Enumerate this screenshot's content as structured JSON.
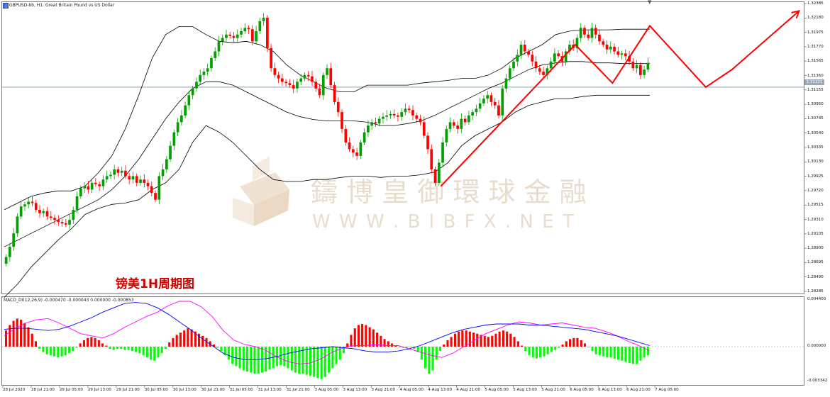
{
  "window": {
    "symbol_title": "GBPUSD-bb, H1:  Great Britain Pound vs US Dollar",
    "macd_title": "MACD_DI(12,26,9) -0.000470 -0.000043 0.000000 -0.000853",
    "scroll_marker": "▼"
  },
  "price_axis": {
    "ticks": [
      "1.32385",
      "1.32180",
      "1.31975",
      "1.31770",
      "1.31565",
      "1.31360",
      "1.31155",
      "1.30950",
      "1.30745",
      "1.30540",
      "1.30335",
      "1.30130",
      "1.29925",
      "1.29720",
      "1.29515",
      "1.29310",
      "1.29105",
      "1.28900",
      "1.28695",
      "1.28490",
      "1.28285"
    ],
    "current_price": "1.31221"
  },
  "macd_axis": {
    "ticks": [
      "0.004400",
      "0.000000",
      "-0.003342"
    ]
  },
  "time_axis": {
    "ticks": [
      "28 Jul 2020",
      "28 Jul 21:00",
      "29 Jul 05:00",
      "29 Jul 13:00",
      "29 Jul 21:00",
      "30 Jul 05:00",
      "30 Jul 13:00",
      "30 Jul 21:00",
      "31 Jul 05:00",
      "31 Jul 13:00",
      "31 Jul 21:00",
      "3 Aug 05:00",
      "3 Aug 13:00",
      "3 Aug 21:00",
      "4 Aug 05:00",
      "4 Aug 13:00",
      "4 Aug 21:00",
      "5 Aug 05:00",
      "5 Aug 13:00",
      "5 Aug 21:00",
      "6 Aug 05:00",
      "6 Aug 13:00",
      "6 Aug 21:00",
      "7 Aug 05:00"
    ]
  },
  "watermark": {
    "company": "鑄 博 皇 御 環 球 金 融",
    "url": "W W W . B I B F X . N E T"
  },
  "annotation": {
    "label": "镑美1H周期图"
  },
  "colors": {
    "bull": "#00a000",
    "bear": "#ff0000",
    "band": "#000000",
    "macd_main": "#ff00ff",
    "macd_signal": "#0000ff",
    "hist_pos": "#ff0000",
    "hist_neg": "#00ff00",
    "pattern": "#ff0000",
    "price_line": "#8ea3b2"
  },
  "chart_data": {
    "type": "candlestick",
    "symbol": "GBPUSD",
    "timeframe": "H1",
    "ylim": [
      1.282,
      1.3245
    ],
    "macd_ylim": [
      -0.003342,
      0.0044
    ],
    "series": [
      {
        "name": "close",
        "values": [
          1.287,
          1.2885,
          1.2905,
          1.293,
          1.2945,
          1.2948,
          1.2952,
          1.295,
          1.294,
          1.2935,
          1.2938,
          1.293,
          1.2928,
          1.2925,
          1.2922,
          1.292,
          1.2918,
          1.2925,
          1.294,
          1.296,
          1.2972,
          1.2975,
          1.297,
          1.298,
          1.2978,
          1.2975,
          1.2985,
          1.299,
          1.2992,
          1.3,
          1.2995,
          1.2998,
          1.299,
          1.2985,
          1.299,
          1.298,
          1.2985,
          1.298,
          1.2975,
          1.2965,
          1.2955,
          1.299,
          1.3,
          1.3015,
          1.3035,
          1.3055,
          1.307,
          1.308,
          1.3095,
          1.311,
          1.312,
          1.313,
          1.314,
          1.3145,
          1.315,
          1.3165,
          1.3175,
          1.319,
          1.3195,
          1.32,
          1.3198,
          1.3195,
          1.32,
          1.3205,
          1.321,
          1.3208,
          1.319,
          1.3205,
          1.322,
          1.3225,
          1.318,
          1.315,
          1.314,
          1.3135,
          1.313,
          1.3128,
          1.3125,
          1.312,
          1.313,
          1.3135,
          1.314,
          1.3138,
          1.313,
          1.312,
          1.311,
          1.314,
          1.315,
          1.3125,
          1.31,
          1.3085,
          1.306,
          1.304,
          1.303,
          1.3025,
          1.302,
          1.304,
          1.3055,
          1.3065,
          1.307,
          1.3068,
          1.3075,
          1.3078,
          1.308,
          1.3082,
          1.308,
          1.3078,
          1.3085,
          1.309,
          1.3088,
          1.308,
          1.3075,
          1.307,
          1.305,
          1.303,
          1.3,
          1.298,
          1.301,
          1.304,
          1.306,
          1.307,
          1.3065,
          1.306,
          1.3075,
          1.307,
          1.308,
          1.3085,
          1.309,
          1.3098,
          1.3105,
          1.311,
          1.31,
          1.3095,
          1.308,
          1.312,
          1.3135,
          1.315,
          1.316,
          1.317,
          1.3185,
          1.3175,
          1.317,
          1.316,
          1.315,
          1.3145,
          1.314,
          1.315,
          1.316,
          1.3172,
          1.3168,
          1.316,
          1.3175,
          1.3185,
          1.318,
          1.3195,
          1.321,
          1.32,
          1.3195,
          1.321,
          1.32,
          1.319,
          1.3185,
          1.3178,
          1.3182,
          1.3175,
          1.317,
          1.3172,
          1.3168,
          1.316,
          1.315,
          1.3155,
          1.314,
          1.3148,
          1.3158
        ]
      },
      {
        "name": "upper_band",
        "values": [
          1.294,
          1.295,
          1.296,
          1.2965,
          1.2968,
          1.2968,
          1.2975,
          1.2995,
          1.302,
          1.306,
          1.311,
          1.3165,
          1.32,
          1.3212,
          1.3212,
          1.32,
          1.319,
          1.3188,
          1.319,
          1.3185,
          1.3175,
          1.3155,
          1.314,
          1.313,
          1.312,
          1.3115,
          1.3115,
          1.3125,
          1.3125,
          1.3125,
          1.3125,
          1.3128,
          1.313,
          1.3132,
          1.3135,
          1.3135,
          1.314,
          1.315,
          1.3165,
          1.3175,
          1.3185,
          1.32,
          1.3205,
          1.3207,
          1.3207,
          1.3207,
          1.3208,
          1.3208,
          1.3208
        ]
      },
      {
        "name": "middle_band",
        "values": [
          1.2885,
          1.2895,
          1.2905,
          1.2915,
          1.2925,
          1.2935,
          1.2945,
          1.2955,
          1.297,
          1.299,
          1.3015,
          1.3045,
          1.3075,
          1.31,
          1.312,
          1.313,
          1.313,
          1.3125,
          1.3115,
          1.3105,
          1.3095,
          1.3085,
          1.3078,
          1.3074,
          1.3072,
          1.3072,
          1.3072,
          1.307,
          1.3065,
          1.3065,
          1.3068,
          1.3072,
          1.308,
          1.309,
          1.31,
          1.311,
          1.312,
          1.3128,
          1.3138,
          1.3148,
          1.3155,
          1.3158,
          1.316,
          1.316,
          1.3158,
          1.3158,
          1.3157,
          1.3157,
          1.3157
        ]
      },
      {
        "name": "lower_band",
        "values": [
          1.281,
          1.283,
          1.2855,
          1.2875,
          1.2895,
          1.2912,
          1.2933,
          1.2942,
          1.2948,
          1.295,
          1.2955,
          1.297,
          1.298,
          1.3,
          1.304,
          1.3065,
          1.3055,
          1.304,
          1.302,
          1.3,
          1.2985,
          1.2982,
          1.2982,
          1.2985,
          1.2985,
          1.2988,
          1.299,
          1.299,
          1.2988,
          1.299,
          1.299,
          1.2992,
          1.2996,
          1.301,
          1.3035,
          1.305,
          1.306,
          1.307,
          1.3085,
          1.3095,
          1.31,
          1.3105,
          1.3105,
          1.3108,
          1.311,
          1.311,
          1.311,
          1.311,
          1.311
        ]
      }
    ],
    "macd": {
      "histogram": [
        0.0015,
        0.002,
        0.0024,
        0.0026,
        0.0025,
        0.0022,
        0.0018,
        0.0012,
        0.0005,
        -0.0002,
        -0.0005,
        -0.0007,
        -0.0008,
        -0.0009,
        -0.001,
        -0.0009,
        -0.0008,
        -0.0006,
        -0.0004,
        -0.0001,
        0.0003,
        0.0006,
        0.0008,
        0.0009,
        0.0008,
        0.0006,
        0.0003,
        0.0001,
        -0.0002,
        -0.0003,
        -0.0002,
        -0.0002,
        -0.0003,
        -0.0003,
        -0.0004,
        -0.0005,
        -0.0006,
        -0.0008,
        -0.001,
        -0.0012,
        -0.0013,
        -0.001,
        -0.0006,
        -0.0002,
        0.0004,
        0.0008,
        0.0011,
        0.0013,
        0.0015,
        0.0017,
        0.0016,
        0.0014,
        0.0012,
        0.001,
        0.0008,
        0.0005,
        0.0002,
        -0.0001,
        -0.0004,
        -0.0008,
        -0.0012,
        -0.0016,
        -0.0018,
        -0.002,
        -0.0022,
        -0.0023,
        -0.0024,
        -0.0025,
        -0.0025,
        -0.0024,
        -0.0023,
        -0.0021,
        -0.002,
        -0.0018,
        -0.0017,
        -0.0018,
        -0.002,
        -0.0022,
        -0.0024,
        -0.0025,
        -0.0025,
        -0.0026,
        -0.0027,
        -0.0028,
        -0.0029,
        -0.003,
        -0.0028,
        -0.0024,
        -0.002,
        -0.0016,
        -0.0012,
        -0.0006,
        0.0003,
        0.0011,
        0.0017,
        0.002,
        0.0021,
        0.002,
        0.0018,
        0.0016,
        0.0013,
        0.001,
        0.0007,
        0.0005,
        0.0003,
        0.0001,
        0.0,
        -0.0001,
        -0.0001,
        0.0,
        -0.0002,
        -0.0005,
        -0.0012,
        -0.002,
        -0.0025,
        -0.0022,
        -0.0012,
        -0.0004,
        0.0002,
        0.0006,
        0.0009,
        0.0012,
        0.0014,
        0.0015,
        0.0015,
        0.0014,
        0.0013,
        0.0012,
        0.0011,
        0.001,
        0.0009,
        0.001,
        0.0012,
        0.0014,
        0.0015,
        0.0014,
        0.0012,
        0.0009,
        0.0005,
        0.0001,
        -0.0004,
        -0.0008,
        -0.001,
        -0.0011,
        -0.001,
        -0.0009,
        -0.0007,
        -0.0005,
        -0.0003,
        -0.0001,
        0.0002,
        0.0005,
        0.0007,
        0.0008,
        0.0008,
        0.0006,
        0.0003,
        0.0,
        -0.0004,
        -0.0007,
        -0.0008,
        -0.0009,
        -0.001,
        -0.001,
        -0.0011,
        -0.0012,
        -0.0013,
        -0.0014,
        -0.0015,
        -0.0016,
        -0.0016,
        -0.0013,
        -0.001,
        -0.0008
      ],
      "main": [
        0.001,
        0.0017,
        0.0022,
        0.0025,
        0.0026,
        0.0022,
        0.0017,
        0.0012,
        0.001,
        0.0008,
        0.0012,
        0.0018,
        0.0023,
        0.0028,
        0.0032,
        0.0038,
        0.0042,
        0.0042,
        0.0037,
        0.0028,
        0.0015,
        0.0006,
        0.0002,
        0.0,
        -0.0004,
        -0.001,
        -0.0014,
        -0.0016,
        -0.0015,
        -0.0011,
        -0.0005,
        -0.0001,
        0.0001,
        0.0001,
        0.0002,
        0.0001,
        0.0001,
        -0.0002,
        -0.0005,
        -0.0008,
        -0.001,
        -0.0006,
        0.0,
        0.0006,
        0.0012,
        0.0016,
        0.002,
        0.0023,
        0.0022,
        0.002,
        0.0021,
        0.0022,
        0.002,
        0.0018,
        0.0017,
        0.0014,
        0.001,
        0.0005,
        0.0001,
        -0.0004
      ],
      "signal": [
        0.0016,
        0.0017,
        0.0017,
        0.0016,
        0.0015,
        0.0016,
        0.0019,
        0.0023,
        0.0027,
        0.0032,
        0.0036,
        0.004,
        0.0041,
        0.004,
        0.0036,
        0.003,
        0.0023,
        0.0016,
        0.0008,
        0.0001,
        -0.0006,
        -0.001,
        -0.0012,
        -0.0012,
        -0.0011,
        -0.0009,
        -0.0006,
        -0.0004,
        -0.0002,
        -0.0001,
        0.0,
        -0.0001,
        -0.0002,
        -0.0004,
        -0.0005,
        -0.0005,
        -0.0004,
        -0.0002,
        0.0001,
        0.0005,
        0.0009,
        0.0013,
        0.0016,
        0.0018,
        0.002,
        0.0021,
        0.0021,
        0.0021,
        0.002,
        0.002,
        0.0019,
        0.0018,
        0.0017,
        0.0016,
        0.0014,
        0.0012,
        0.001,
        0.0007,
        0.0004,
        0.0001
      ]
    },
    "pattern_line": {
      "name": "manual trendline",
      "points": [
        [
          117,
          1.2975
        ],
        [
          153,
          1.3185
        ],
        [
          163,
          1.3128
        ],
        [
          173,
          1.3213
        ],
        [
          188,
          1.3122
        ],
        [
          195,
          1.3148
        ],
        [
          213,
          1.3235
        ]
      ]
    }
  }
}
